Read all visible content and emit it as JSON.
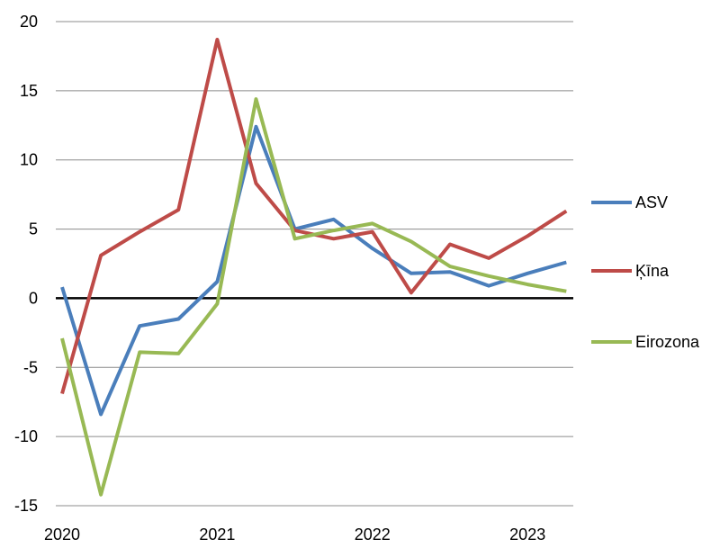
{
  "chart_data": {
    "type": "line",
    "title": "",
    "xlabel": "",
    "ylabel": "",
    "ylim": [
      -15,
      20
    ],
    "yticks": [
      20,
      15,
      10,
      5,
      0,
      -5,
      -10,
      -15
    ],
    "xticks": [
      {
        "label": "2020",
        "index": 0
      },
      {
        "label": "2021",
        "index": 4
      },
      {
        "label": "2022",
        "index": 8
      },
      {
        "label": "2023",
        "index": 12
      }
    ],
    "x": [
      "2020 Q1",
      "2020 Q2",
      "2020 Q3",
      "2020 Q4",
      "2021 Q1",
      "2021 Q2",
      "2021 Q3",
      "2021 Q4",
      "2022 Q1",
      "2022 Q2",
      "2022 Q3",
      "2022 Q4",
      "2023 Q1",
      "2023 Q2"
    ],
    "grid": true,
    "legend": "right",
    "series": [
      {
        "name": "ASV",
        "color": "#4a7ebb",
        "values": [
          0.8,
          -8.4,
          -2.0,
          -1.5,
          1.2,
          12.4,
          5.0,
          5.7,
          3.6,
          1.8,
          1.9,
          0.9,
          1.8,
          2.6
        ]
      },
      {
        "name": "Ķīna",
        "color": "#be4b48",
        "values": [
          -6.9,
          3.1,
          4.8,
          6.4,
          18.7,
          8.3,
          4.9,
          4.3,
          4.8,
          0.4,
          3.9,
          2.9,
          4.5,
          6.3
        ]
      },
      {
        "name": "Eirozona",
        "color": "#98b954",
        "values": [
          -2.9,
          -14.2,
          -3.9,
          -4.0,
          -0.4,
          14.4,
          4.3,
          4.9,
          5.4,
          4.1,
          2.3,
          1.6,
          1.0,
          0.5
        ]
      }
    ]
  }
}
